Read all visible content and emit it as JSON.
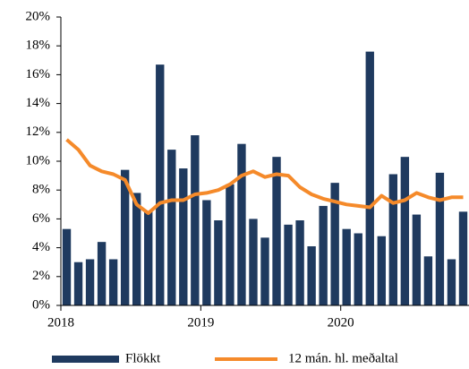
{
  "chart_data": {
    "type": "bar",
    "categories": [
      "2018",
      null,
      null,
      null,
      null,
      null,
      null,
      null,
      null,
      null,
      null,
      null,
      "2019",
      null,
      null,
      null,
      null,
      null,
      null,
      null,
      null,
      null,
      null,
      null,
      "2020",
      null,
      null,
      null,
      null,
      null,
      null,
      null,
      null,
      null,
      null
    ],
    "series": [
      {
        "name": "Flökkt",
        "type": "bar",
        "color": "#1f3a5f",
        "values": [
          5.3,
          3.0,
          3.2,
          4.4,
          3.2,
          9.4,
          7.8,
          6.5,
          16.7,
          10.8,
          9.5,
          11.8,
          7.3,
          5.9,
          8.4,
          11.2,
          6.0,
          4.7,
          10.3,
          5.6,
          5.9,
          4.1,
          6.9,
          8.5,
          5.3,
          5.0,
          17.6,
          4.8,
          9.1,
          10.3,
          6.3,
          3.4,
          9.2,
          3.2,
          6.5
        ]
      },
      {
        "name": "12 mán. hl. meðaltal",
        "type": "line",
        "color": "#f58a2a",
        "values": [
          11.5,
          10.8,
          9.7,
          9.3,
          9.1,
          8.7,
          7.0,
          6.4,
          7.1,
          7.3,
          7.3,
          7.7,
          7.8,
          8.0,
          8.4,
          9.0,
          9.3,
          8.9,
          9.1,
          9.0,
          8.2,
          7.7,
          7.4,
          7.2,
          7.0,
          6.9,
          6.8,
          7.6,
          7.1,
          7.3,
          7.8,
          7.5,
          7.3,
          7.5,
          7.5
        ]
      }
    ],
    "ylim": [
      0,
      20
    ],
    "yticks": [
      {
        "value": 0,
        "label": "0%"
      },
      {
        "value": 2,
        "label": "2%"
      },
      {
        "value": 4,
        "label": "4%"
      },
      {
        "value": 6,
        "label": "6%"
      },
      {
        "value": 8,
        "label": "8%"
      },
      {
        "value": 10,
        "label": "10%"
      },
      {
        "value": 12,
        "label": "12%"
      },
      {
        "value": 14,
        "label": "14%"
      },
      {
        "value": 16,
        "label": "16%"
      },
      {
        "value": 18,
        "label": "18%"
      },
      {
        "value": 20,
        "label": "20%"
      }
    ],
    "grid": false,
    "legend": "bottom"
  }
}
